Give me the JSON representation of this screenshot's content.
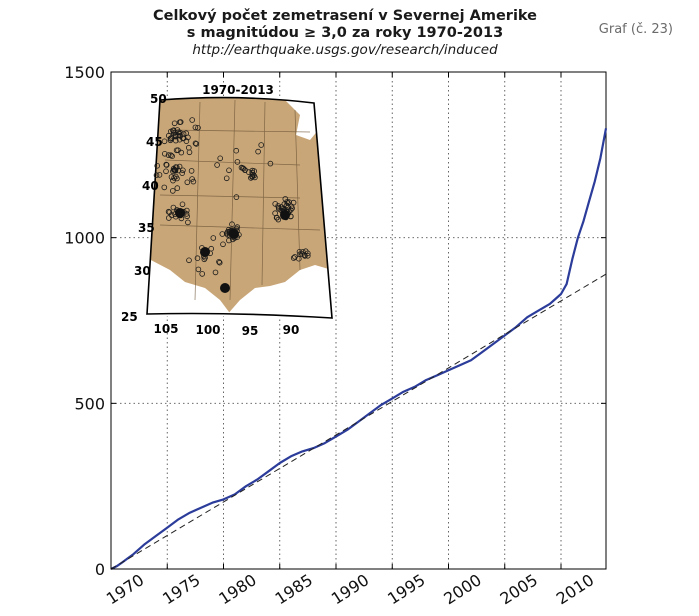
{
  "header": {
    "title_line1": "Celkový počet zemetrasení v Severnej Amerike",
    "title_line2": "s magnitúdou ≥ 3,0 za roky 1970-2013",
    "source_url": "http://earthquake.usgs.gov/research/induced",
    "graf_label": "Graf (č. 23)"
  },
  "chart_data": {
    "type": "line",
    "title": "Celkový počet zemetrasení v Severnej Amerike s magnitúdou ≥ 3,0 za roky 1970-2013",
    "xlabel": "",
    "ylabel": "",
    "xlim": [
      1970,
      2014
    ],
    "ylim": [
      0,
      1500
    ],
    "grid": true,
    "xticks": [
      1970,
      1975,
      1980,
      1985,
      1990,
      1995,
      2000,
      2005,
      2010
    ],
    "yticks": [
      0,
      500,
      1000,
      1500
    ],
    "series": [
      {
        "style": "solid",
        "color": "#2b3c9a",
        "x": [
          1970,
          1970.5,
          1971,
          1972,
          1973,
          1974,
          1975,
          1976,
          1977,
          1978,
          1979,
          1980,
          1981,
          1982,
          1983,
          1984,
          1985,
          1986,
          1987,
          1988,
          1989,
          1990,
          1991,
          1992,
          1993,
          1994,
          1995,
          1996,
          1997,
          1998,
          1999,
          2000,
          2001,
          2002,
          2003,
          2004,
          2005,
          2006,
          2007,
          2008,
          2009,
          2009.5,
          2010,
          2010.5,
          2011,
          2011.5,
          2012,
          2012.5,
          2013,
          2013.5,
          2014
        ],
        "y": [
          0,
          8,
          20,
          45,
          75,
          100,
          125,
          150,
          170,
          185,
          200,
          210,
          225,
          250,
          270,
          295,
          320,
          340,
          355,
          365,
          380,
          400,
          420,
          445,
          470,
          495,
          515,
          535,
          550,
          570,
          585,
          600,
          615,
          630,
          655,
          680,
          705,
          730,
          760,
          780,
          800,
          815,
          830,
          860,
          935,
          1000,
          1050,
          1110,
          1170,
          1240,
          1330
        ]
      },
      {
        "style": "dashed",
        "color": "#222222",
        "x": [
          1970,
          2014
        ],
        "y": [
          0,
          890
        ]
      }
    ],
    "inset_map": {
      "title": "1970-2013",
      "lat_labels": [
        "50",
        "45",
        "40",
        "35",
        "30",
        "25"
      ],
      "lon_labels": [
        "105",
        "100",
        "95",
        "90"
      ]
    }
  }
}
